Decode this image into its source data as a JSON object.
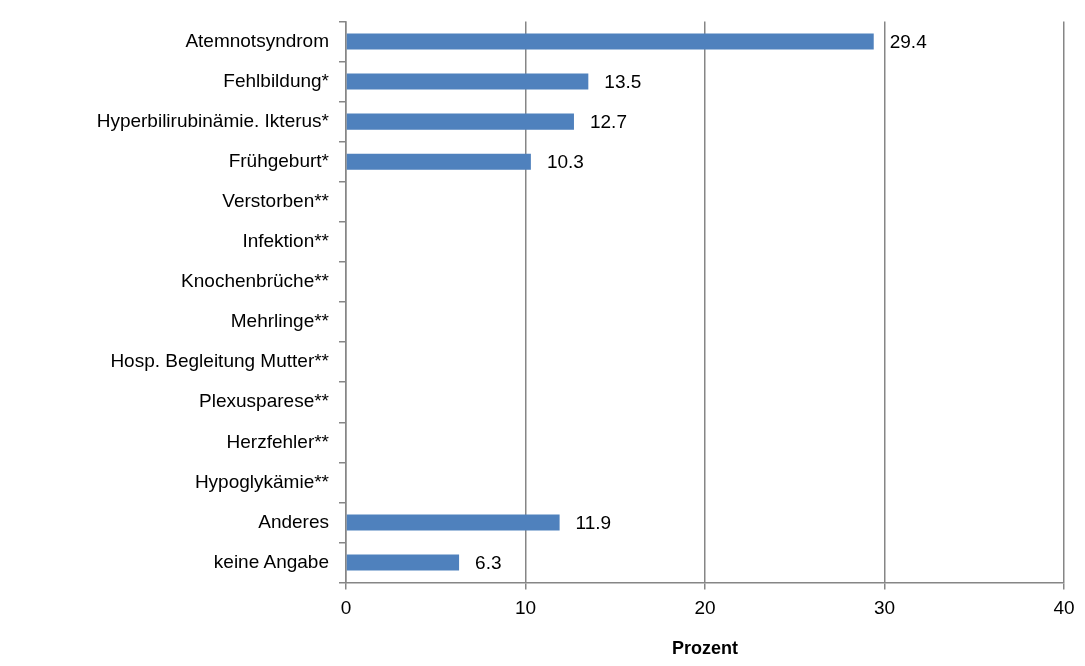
{
  "chart_data": {
    "type": "bar",
    "orientation": "horizontal",
    "xlabel": "Prozent",
    "categories": [
      "Atemnotsyndrom",
      "Fehlbildung*",
      "Hyperbilirubinämie. Ikterus*",
      "Frühgeburt*",
      "Verstorben**",
      "Infektion**",
      "Knochenbrüche**",
      "Mehrlinge**",
      "Hosp. Begleitung Mutter**",
      "Plexusparese**",
      "Herzfehler**",
      "Hypoglykämie**",
      "Anderes",
      "keine Angabe"
    ],
    "values": [
      29.4,
      13.5,
      12.7,
      10.3,
      null,
      null,
      null,
      null,
      null,
      null,
      null,
      null,
      11.9,
      6.3
    ],
    "color": "#4f81bd",
    "xlim": [
      0,
      40
    ],
    "xticks": [
      0,
      10,
      20,
      30,
      40
    ],
    "grid": "x",
    "legend": false,
    "data_labels": true
  }
}
